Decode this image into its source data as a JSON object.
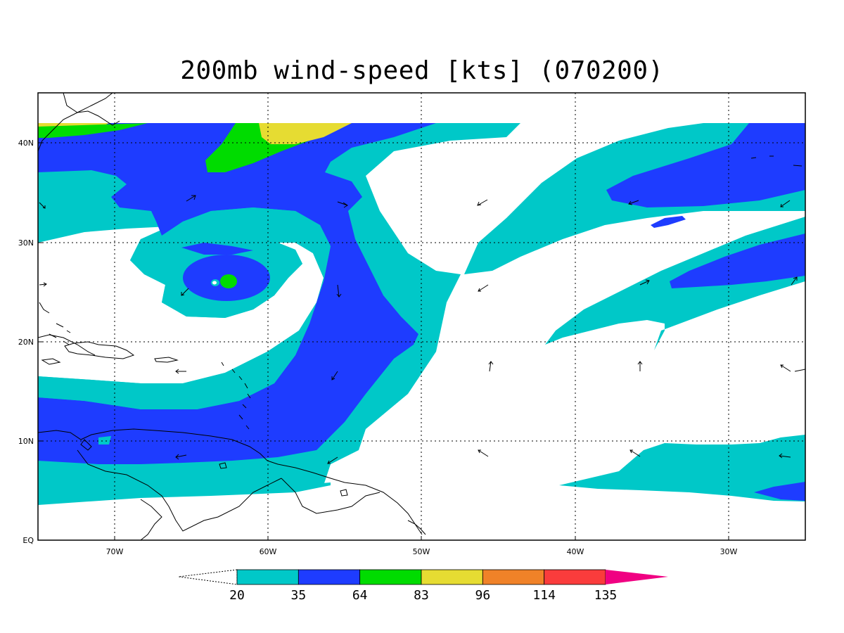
{
  "title": "200mb wind-speed [kts] (070200)",
  "map": {
    "lon_labels": [
      "70W",
      "60W",
      "50W",
      "40W",
      "30W"
    ],
    "lat_labels": [
      "EQ",
      "10N",
      "20N",
      "30N",
      "40N"
    ]
  },
  "colorbar": {
    "bins": [
      {
        "color": "#00c8c8"
      },
      {
        "color": "#1e3cff"
      },
      {
        "color": "#00dc00"
      },
      {
        "color": "#e6dc32"
      },
      {
        "color": "#f08228"
      },
      {
        "color": "#fa3c3c"
      }
    ],
    "overflow_color": "#f00082",
    "ticks": [
      "20",
      "35",
      "64",
      "83",
      "96",
      "114",
      "135"
    ]
  },
  "colors": {
    "fill_20": "#00c8c8",
    "fill_35": "#1e3cff",
    "fill_64": "#00dc00",
    "fill_83": "#e6dc32"
  }
}
